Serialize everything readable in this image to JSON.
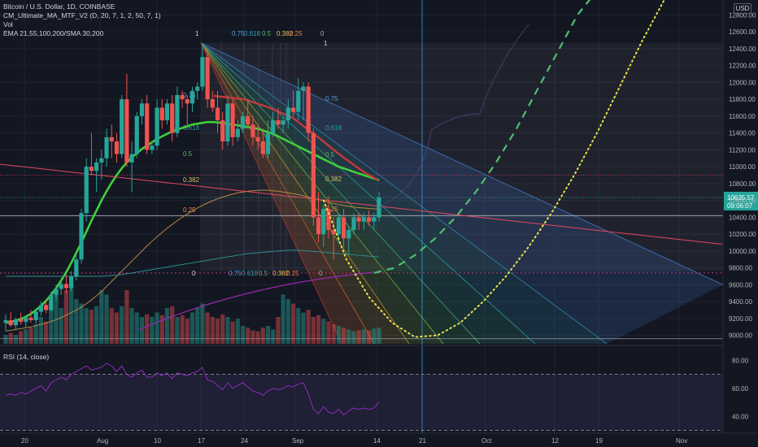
{
  "legend": {
    "symbol": "Bitcoin / U.S. Dollar, 1D, COINBASE",
    "indicator1": "CM_Ultimate_MA_MTF_V2 (D, 20, 7, 1, 2, 50, 7, 1)",
    "indicator2": "Vol",
    "indicator3": "EMA 21,55,100,200/SMA 30,200",
    "rsi": "RSI (14, close)"
  },
  "currency": "USD",
  "colors": {
    "background": "#131722",
    "grid": "#1f2330",
    "up": "#26a69a",
    "down": "#ef5350",
    "ma_green": "#3ed13b",
    "ma_red": "#c2393a",
    "trend_pink": "#e8475f",
    "projection_green": "#4fbf6f",
    "projection_yellow": "#e6e24a",
    "rsi": "#8d2db9",
    "fan_blue": "#3e7fcf",
    "crosshair": "#2f9ce0"
  },
  "price_axis": {
    "ticks": [
      "12800.00",
      "12600.00",
      "12400.00",
      "12200.00",
      "12000.00",
      "11800.00",
      "11600.00",
      "11400.00",
      "11200.00",
      "11000.00",
      "10800.00",
      "10600.00",
      "10400.00",
      "10200.00",
      "10000.00",
      "9800.00",
      "9600.00",
      "9400.00",
      "9200.00",
      "9000.00"
    ],
    "current_price": "10635.57",
    "countdown": "09:06:07"
  },
  "rsi_axis": {
    "ticks": [
      "80.00",
      "60.00",
      "40.00"
    ]
  },
  "time_axis": {
    "ticks": [
      "20",
      "Aug",
      "10",
      "17",
      "24",
      "Sep",
      "14",
      "21",
      "Oct",
      "12",
      "19",
      "Nov"
    ]
  },
  "fib_labels": {
    "top": [
      "1",
      "0.75",
      "0.618",
      "0.5",
      "0.382",
      "0.25",
      "0"
    ],
    "bottom": [
      "0",
      "0.75",
      "0.618",
      "0.5",
      "0.382",
      "0.25",
      "0"
    ],
    "left": [
      "0.75",
      "0.618",
      "0.5",
      "0.382",
      "0.25"
    ],
    "right": [
      "1",
      "0.75",
      "0.618",
      "0.5",
      "0.382",
      "0.25"
    ]
  },
  "chart_data": {
    "type": "candlestick",
    "price_range": [
      8900,
      12900
    ],
    "rsi_range": [
      28,
      86
    ],
    "candles": [
      {
        "o": 9150,
        "h": 9250,
        "l": 9050,
        "c": 9180
      },
      {
        "o": 9180,
        "h": 9280,
        "l": 9100,
        "c": 9120
      },
      {
        "o": 9120,
        "h": 9210,
        "l": 9060,
        "c": 9190
      },
      {
        "o": 9190,
        "h": 9270,
        "l": 9130,
        "c": 9160
      },
      {
        "o": 9160,
        "h": 9240,
        "l": 9090,
        "c": 9210
      },
      {
        "o": 9210,
        "h": 9300,
        "l": 9150,
        "c": 9180
      },
      {
        "o": 9180,
        "h": 9320,
        "l": 9140,
        "c": 9280
      },
      {
        "o": 9280,
        "h": 9400,
        "l": 9230,
        "c": 9360
      },
      {
        "o": 9360,
        "h": 9420,
        "l": 9260,
        "c": 9300
      },
      {
        "o": 9300,
        "h": 9520,
        "l": 9280,
        "c": 9480
      },
      {
        "o": 9480,
        "h": 9600,
        "l": 9420,
        "c": 9550
      },
      {
        "o": 9550,
        "h": 9680,
        "l": 9480,
        "c": 9610
      },
      {
        "o": 9610,
        "h": 9720,
        "l": 9500,
        "c": 9560
      },
      {
        "o": 9560,
        "h": 9760,
        "l": 9520,
        "c": 9700
      },
      {
        "o": 9700,
        "h": 9950,
        "l": 9650,
        "c": 9900
      },
      {
        "o": 9900,
        "h": 10500,
        "l": 9850,
        "c": 10450
      },
      {
        "o": 10450,
        "h": 11100,
        "l": 10350,
        "c": 11000
      },
      {
        "o": 11000,
        "h": 11400,
        "l": 10900,
        "c": 10950
      },
      {
        "o": 10950,
        "h": 11100,
        "l": 10700,
        "c": 11050
      },
      {
        "o": 11050,
        "h": 11200,
        "l": 10850,
        "c": 11100
      },
      {
        "o": 11100,
        "h": 11450,
        "l": 11000,
        "c": 11350
      },
      {
        "o": 11350,
        "h": 11500,
        "l": 11100,
        "c": 11300
      },
      {
        "o": 11300,
        "h": 11400,
        "l": 11050,
        "c": 11150
      },
      {
        "o": 11150,
        "h": 11850,
        "l": 11100,
        "c": 11800
      },
      {
        "o": 11800,
        "h": 12100,
        "l": 11000,
        "c": 11050
      },
      {
        "o": 11050,
        "h": 11300,
        "l": 10700,
        "c": 11150
      },
      {
        "o": 11150,
        "h": 11650,
        "l": 11100,
        "c": 11600
      },
      {
        "o": 11600,
        "h": 11800,
        "l": 11500,
        "c": 11750
      },
      {
        "o": 11750,
        "h": 11850,
        "l": 11150,
        "c": 11200
      },
      {
        "o": 11200,
        "h": 11300,
        "l": 11150,
        "c": 11250
      },
      {
        "o": 11250,
        "h": 11800,
        "l": 11200,
        "c": 11700
      },
      {
        "o": 11700,
        "h": 11800,
        "l": 11450,
        "c": 11550
      },
      {
        "o": 11550,
        "h": 11800,
        "l": 11500,
        "c": 11750
      },
      {
        "o": 11750,
        "h": 11850,
        "l": 11300,
        "c": 11400
      },
      {
        "o": 11400,
        "h": 11950,
        "l": 11350,
        "c": 11850
      },
      {
        "o": 11850,
        "h": 11900,
        "l": 11700,
        "c": 11800
      },
      {
        "o": 11800,
        "h": 11850,
        "l": 11450,
        "c": 11750
      },
      {
        "o": 11750,
        "h": 11950,
        "l": 11650,
        "c": 11900
      },
      {
        "o": 11900,
        "h": 12000,
        "l": 11800,
        "c": 11950
      },
      {
        "o": 11950,
        "h": 12450,
        "l": 11900,
        "c": 12300
      },
      {
        "o": 12300,
        "h": 12400,
        "l": 11700,
        "c": 11800
      },
      {
        "o": 11800,
        "h": 11900,
        "l": 11650,
        "c": 11700
      },
      {
        "o": 11700,
        "h": 11900,
        "l": 11400,
        "c": 11550
      },
      {
        "o": 11550,
        "h": 11650,
        "l": 11200,
        "c": 11300
      },
      {
        "o": 11300,
        "h": 11850,
        "l": 11250,
        "c": 11750
      },
      {
        "o": 11750,
        "h": 11800,
        "l": 11250,
        "c": 11350
      },
      {
        "o": 11350,
        "h": 11550,
        "l": 11300,
        "c": 11450
      },
      {
        "o": 11450,
        "h": 11650,
        "l": 11400,
        "c": 11600
      },
      {
        "o": 11600,
        "h": 11800,
        "l": 11450,
        "c": 11500
      },
      {
        "o": 11500,
        "h": 11600,
        "l": 11250,
        "c": 11350
      },
      {
        "o": 11350,
        "h": 11500,
        "l": 11200,
        "c": 11300
      },
      {
        "o": 11300,
        "h": 11450,
        "l": 11100,
        "c": 11150
      },
      {
        "o": 11150,
        "h": 11550,
        "l": 11100,
        "c": 11400
      },
      {
        "o": 11400,
        "h": 11650,
        "l": 11350,
        "c": 11550
      },
      {
        "o": 11550,
        "h": 11700,
        "l": 11450,
        "c": 11500
      },
      {
        "o": 11500,
        "h": 11600,
        "l": 11400,
        "c": 11550
      },
      {
        "o": 11550,
        "h": 11800,
        "l": 11450,
        "c": 11700
      },
      {
        "o": 11700,
        "h": 11900,
        "l": 11600,
        "c": 11650
      },
      {
        "o": 11650,
        "h": 12050,
        "l": 11550,
        "c": 11900
      },
      {
        "o": 11900,
        "h": 12000,
        "l": 11550,
        "c": 11950
      },
      {
        "o": 11950,
        "h": 12000,
        "l": 11300,
        "c": 11400
      },
      {
        "o": 11400,
        "h": 11450,
        "l": 10300,
        "c": 10400
      },
      {
        "o": 10400,
        "h": 10700,
        "l": 10100,
        "c": 10200
      },
      {
        "o": 10200,
        "h": 10550,
        "l": 10050,
        "c": 10500
      },
      {
        "o": 10500,
        "h": 10650,
        "l": 10150,
        "c": 10250
      },
      {
        "o": 10250,
        "h": 10400,
        "l": 9900,
        "c": 10200
      },
      {
        "o": 10200,
        "h": 10450,
        "l": 10100,
        "c": 10400
      },
      {
        "o": 10400,
        "h": 10500,
        "l": 10050,
        "c": 10150
      },
      {
        "o": 10150,
        "h": 10300,
        "l": 9950,
        "c": 10250
      },
      {
        "o": 10250,
        "h": 10450,
        "l": 10200,
        "c": 10400
      },
      {
        "o": 10400,
        "h": 10450,
        "l": 10250,
        "c": 10350
      },
      {
        "o": 10350,
        "h": 10450,
        "l": 10250,
        "c": 10400
      },
      {
        "o": 10400,
        "h": 10480,
        "l": 10300,
        "c": 10350
      },
      {
        "o": 10350,
        "h": 10450,
        "l": 10250,
        "c": 10400
      },
      {
        "o": 10400,
        "h": 10700,
        "l": 10350,
        "c": 10636
      }
    ],
    "volume": [
      0.1,
      0.12,
      0.1,
      0.14,
      0.16,
      0.18,
      0.22,
      0.3,
      0.25,
      0.45,
      0.55,
      0.4,
      0.6,
      0.72,
      0.5,
      0.45,
      0.4,
      0.38,
      0.42,
      0.6,
      0.55,
      0.4,
      0.35,
      0.42,
      0.6,
      0.4,
      0.35,
      0.3,
      0.33,
      0.3,
      0.35,
      0.32,
      0.4,
      0.42,
      0.3,
      0.32,
      0.28,
      0.35,
      0.4,
      0.45,
      0.35,
      0.3,
      0.28,
      0.33,
      0.3,
      0.25,
      0.28,
      0.2,
      0.18,
      0.15,
      0.14,
      0.18,
      0.2,
      0.16,
      0.3,
      0.55,
      0.5,
      0.45,
      0.4,
      0.35,
      0.38,
      0.3,
      0.32,
      0.28,
      0.25,
      0.22,
      0.2,
      0.18,
      0.16,
      0.14,
      0.15,
      0.16,
      0.15,
      0.17,
      0.18
    ],
    "rsi": [
      55,
      56,
      55,
      57,
      56,
      58,
      60,
      62,
      58,
      64,
      66,
      68,
      66,
      70,
      72,
      74,
      76,
      73,
      74,
      75,
      78,
      76,
      72,
      76,
      70,
      68,
      71,
      73,
      68,
      68,
      71,
      69,
      71,
      67,
      71,
      70,
      69,
      71,
      72,
      75,
      66,
      65,
      62,
      59,
      64,
      60,
      62,
      64,
      61,
      58,
      57,
      55,
      58,
      60,
      59,
      60,
      62,
      61,
      63,
      64,
      56,
      45,
      42,
      47,
      43,
      42,
      45,
      41,
      44,
      46,
      45,
      46,
      45,
      46,
      50
    ],
    "moving_averages": [
      {
        "values": [
          9150,
          9160,
          9175,
          9195,
          9220,
          9255,
          9300,
          9350,
          9410,
          9480,
          9560,
          9650,
          9750,
          9860,
          9980,
          10100,
          10230,
          10360,
          10480,
          10600,
          10710,
          10810,
          10900,
          10980,
          11050,
          11110,
          11160,
          11210,
          11250,
          11290,
          11330,
          11360,
          11390,
          11420,
          11440,
          11460,
          11480,
          11500,
          11510,
          11520,
          11530,
          11530,
          11525,
          11520,
          11510,
          11500,
          11490,
          11480,
          11470,
          11460,
          11450,
          11430,
          11410,
          11390,
          11360,
          11330,
          11300,
          11270,
          11240,
          11210,
          11180,
          11150,
          11120,
          11090,
          11060,
          11030,
          11000,
          10980,
          10960,
          10940,
          10920,
          10900,
          10880,
          10860,
          10840
        ]
      },
      {
        "values": [
          9050,
          9060,
          9070,
          9080,
          9090,
          9100,
          9115,
          9130,
          9145,
          9165,
          9185,
          9210,
          9240,
          9270,
          9300,
          9335,
          9375,
          9420,
          9470,
          9520,
          9580,
          9640,
          9700,
          9760,
          9820,
          9880,
          9940,
          10000,
          10060,
          10115,
          10170,
          10220,
          10270,
          10315,
          10360,
          10400,
          10440,
          10475,
          10510,
          10540,
          10570,
          10595,
          10620,
          10640,
          10660,
          10675,
          10690,
          10700,
          10710,
          10715,
          10720,
          10720,
          10720,
          10715,
          10710,
          10700,
          10690,
          10680,
          10670,
          10655,
          10640,
          10625,
          10610,
          10595,
          10580,
          10565,
          10550,
          10540,
          10530,
          10520,
          10515,
          10510,
          10505,
          10500,
          10500
        ]
      },
      {
        "values": [
          9700,
          9700,
          9700,
          9700,
          9700,
          9700,
          9700,
          9700,
          9700,
          9700,
          9700,
          9700,
          9700,
          9700,
          9700,
          9700,
          9700,
          9700,
          9700,
          9700,
          9705,
          9710,
          9715,
          9720,
          9730,
          9740,
          9750,
          9760,
          9770,
          9780,
          9790,
          9800,
          9810,
          9820,
          9830,
          9840,
          9850,
          9860,
          9870,
          9880,
          9890,
          9900,
          9910,
          9920,
          9930,
          9940,
          9950,
          9960,
          9970,
          9975,
          9980,
          9985,
          9990,
          9995,
          10000,
          10005,
          10010,
          10010,
          10010,
          10005,
          10000,
          9995,
          9990,
          9985,
          9980,
          9975,
          9970,
          9965,
          9960,
          9955,
          9950,
          9945,
          9940,
          9935,
          9930
        ]
      }
    ],
    "trend_line": {
      "start": 11030,
      "end": 10080
    },
    "projection_green": [
      9740,
      9800,
      9950,
      10150,
      10400,
      10700,
      11050,
      11450,
      11900,
      12350,
      12800,
      13100
    ],
    "projection_yellow": [
      10600,
      9900,
      9450,
      9150,
      8980,
      9000,
      9150,
      9400,
      9700,
      10050,
      10450,
      10900,
      11400,
      11950,
      12500,
      13000
    ],
    "fan": {
      "high": 12470,
      "low": 9760
    },
    "ref_lines": [
      10900,
      10635.57,
      10420,
      9740,
      8960
    ]
  }
}
